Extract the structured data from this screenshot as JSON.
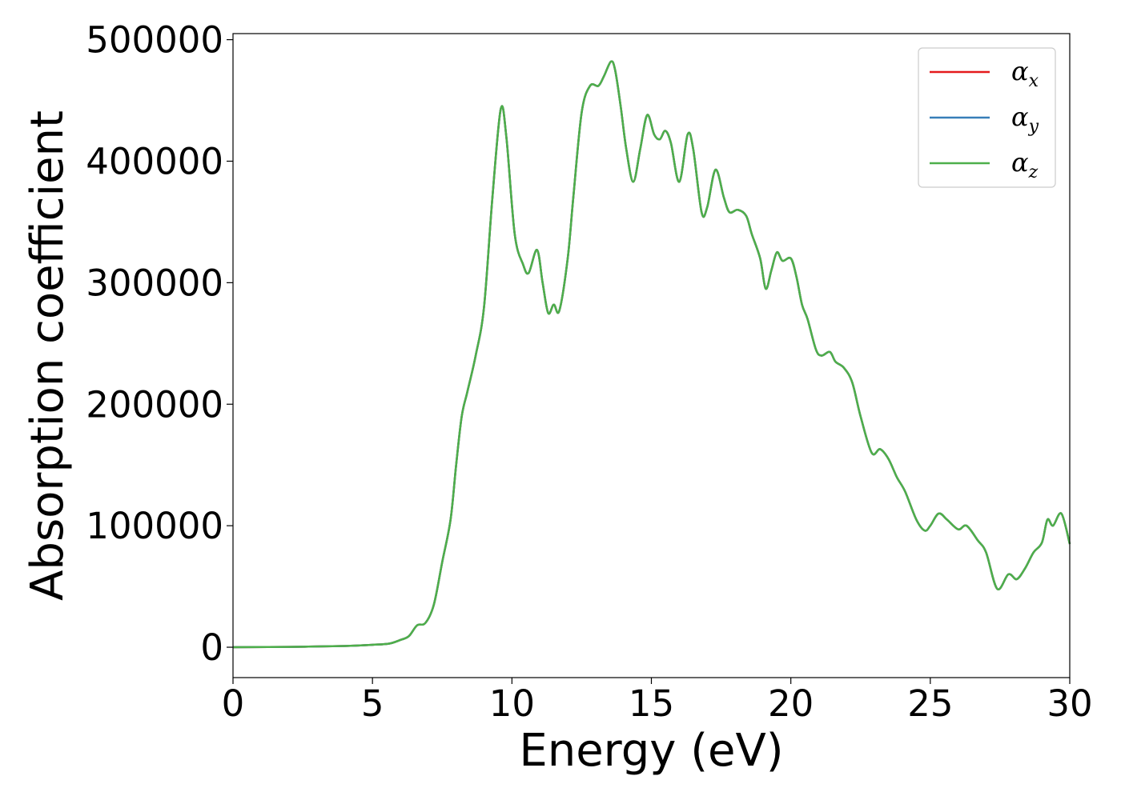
{
  "chart_data": {
    "type": "line",
    "xlabel": "Energy (eV)",
    "ylabel": "Absorption coefficient",
    "xlim": [
      0,
      30
    ],
    "ylim": [
      -25000,
      505000
    ],
    "x_ticks": [
      0,
      5,
      10,
      15,
      20,
      25,
      30
    ],
    "x_tick_labels": [
      "0",
      "5",
      "10",
      "15",
      "20",
      "25",
      "30"
    ],
    "y_ticks": [
      0,
      100000,
      200000,
      300000,
      400000,
      500000
    ],
    "y_tick_labels": [
      "0",
      "100000",
      "200000",
      "300000",
      "400000",
      "500000"
    ],
    "grid": false,
    "legend_position": "top-right",
    "series": [
      {
        "name": "α",
        "subscript": "x",
        "color": "#e41a1c",
        "points": "shared"
      },
      {
        "name": "α",
        "subscript": "y",
        "color": "#377eb8",
        "points": "shared"
      },
      {
        "name": "α",
        "subscript": "z",
        "color": "#4daf4a",
        "points": "shared"
      }
    ],
    "shared_points": [
      [
        0,
        0
      ],
      [
        2,
        300
      ],
      [
        4,
        1000
      ],
      [
        5,
        2000
      ],
      [
        5.6,
        3000
      ],
      [
        6.0,
        6000
      ],
      [
        6.3,
        9000
      ],
      [
        6.6,
        18000
      ],
      [
        6.9,
        20000
      ],
      [
        7.2,
        35000
      ],
      [
        7.5,
        70000
      ],
      [
        7.8,
        105000
      ],
      [
        8.0,
        150000
      ],
      [
        8.2,
        190000
      ],
      [
        8.4,
        210000
      ],
      [
        8.7,
        240000
      ],
      [
        9.0,
        280000
      ],
      [
        9.3,
        370000
      ],
      [
        9.6,
        443000
      ],
      [
        9.8,
        420000
      ],
      [
        10.1,
        340000
      ],
      [
        10.4,
        315000
      ],
      [
        10.6,
        308000
      ],
      [
        10.9,
        327000
      ],
      [
        11.1,
        300000
      ],
      [
        11.3,
        275000
      ],
      [
        11.5,
        282000
      ],
      [
        11.7,
        277000
      ],
      [
        12.0,
        320000
      ],
      [
        12.2,
        370000
      ],
      [
        12.5,
        440000
      ],
      [
        12.8,
        462000
      ],
      [
        13.1,
        462000
      ],
      [
        13.3,
        470000
      ],
      [
        13.55,
        482000
      ],
      [
        13.7,
        475000
      ],
      [
        13.9,
        445000
      ],
      [
        14.1,
        410000
      ],
      [
        14.35,
        383000
      ],
      [
        14.6,
        410000
      ],
      [
        14.85,
        438000
      ],
      [
        15.1,
        422000
      ],
      [
        15.3,
        418000
      ],
      [
        15.5,
        425000
      ],
      [
        15.7,
        415000
      ],
      [
        16.0,
        383000
      ],
      [
        16.3,
        422000
      ],
      [
        16.5,
        410000
      ],
      [
        16.8,
        358000
      ],
      [
        17.0,
        362000
      ],
      [
        17.3,
        393000
      ],
      [
        17.6,
        370000
      ],
      [
        17.8,
        358000
      ],
      [
        18.1,
        360000
      ],
      [
        18.4,
        355000
      ],
      [
        18.6,
        340000
      ],
      [
        18.9,
        320000
      ],
      [
        19.1,
        295000
      ],
      [
        19.3,
        310000
      ],
      [
        19.5,
        325000
      ],
      [
        19.7,
        318000
      ],
      [
        20.0,
        320000
      ],
      [
        20.2,
        305000
      ],
      [
        20.4,
        282000
      ],
      [
        20.6,
        270000
      ],
      [
        20.9,
        245000
      ],
      [
        21.1,
        240000
      ],
      [
        21.4,
        243000
      ],
      [
        21.6,
        235000
      ],
      [
        21.9,
        230000
      ],
      [
        22.2,
        218000
      ],
      [
        22.5,
        190000
      ],
      [
        22.9,
        160000
      ],
      [
        23.2,
        163000
      ],
      [
        23.5,
        155000
      ],
      [
        23.8,
        140000
      ],
      [
        24.1,
        128000
      ],
      [
        24.5,
        105000
      ],
      [
        24.8,
        96000
      ],
      [
        25.0,
        100000
      ],
      [
        25.3,
        110000
      ],
      [
        25.6,
        105000
      ],
      [
        26.0,
        97000
      ],
      [
        26.3,
        100000
      ],
      [
        26.7,
        88000
      ],
      [
        27.0,
        78000
      ],
      [
        27.4,
        48000
      ],
      [
        27.8,
        60000
      ],
      [
        28.1,
        56000
      ],
      [
        28.4,
        65000
      ],
      [
        28.7,
        78000
      ],
      [
        29.0,
        86000
      ],
      [
        29.2,
        105000
      ],
      [
        29.4,
        100000
      ],
      [
        29.7,
        110000
      ],
      [
        30.0,
        85000
      ]
    ]
  }
}
